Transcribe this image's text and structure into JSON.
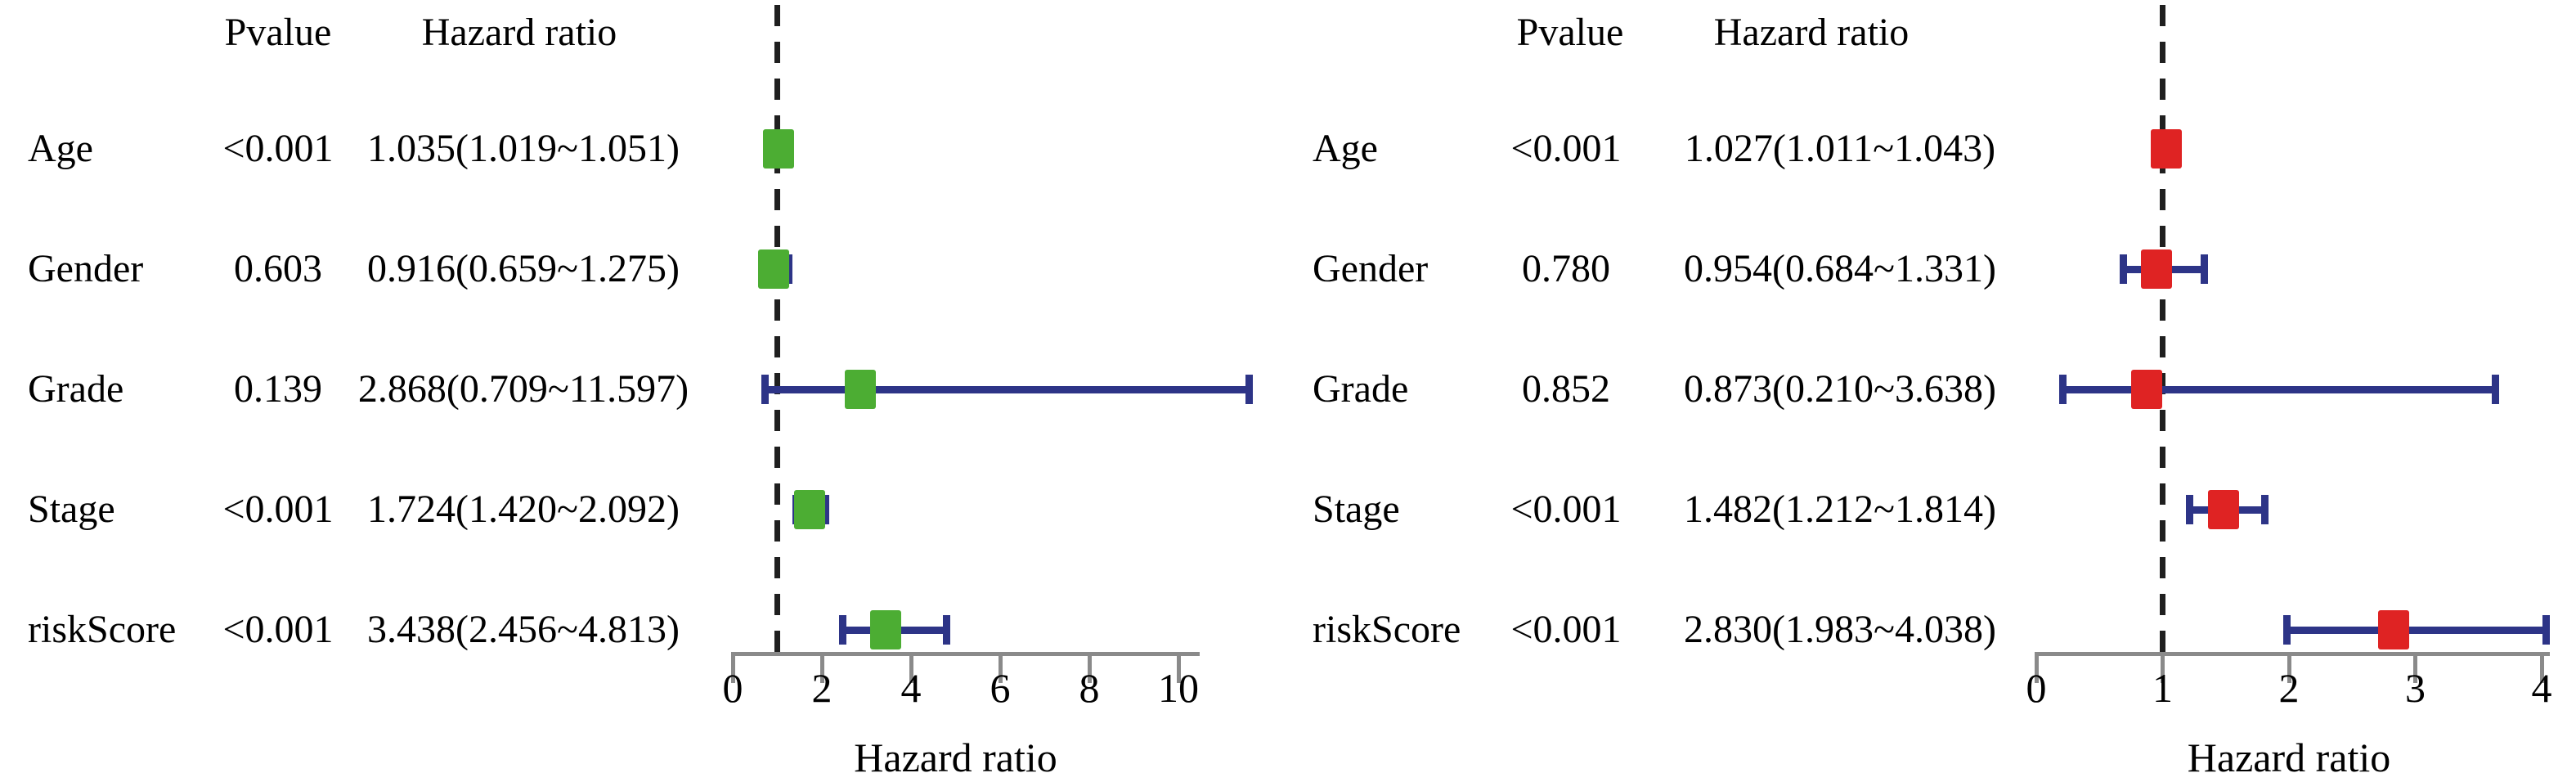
{
  "colors": {
    "ci_bar": "#2d3487",
    "axis": "#8a8a8a",
    "reference_line": "#1f1f1f",
    "text": "#000000",
    "background": "#ffffff",
    "marker_green": "#4cad33",
    "marker_red": "#df2323"
  },
  "chart_data": [
    {
      "type": "forest",
      "title": "",
      "col_headers": {
        "pvalue": "Pvalue",
        "hazard_ratio": "Hazard ratio"
      },
      "xlabel": "Hazard ratio",
      "marker_color": "#4cad33",
      "reference_line_x": 1,
      "axis": {
        "min": 0,
        "max": 10,
        "ticks": [
          0,
          2,
          4,
          6,
          8,
          10
        ]
      },
      "rows": [
        {
          "label": "Age",
          "pvalue": "<0.001",
          "hr_text": "1.035(1.019~1.051)",
          "hr": 1.035,
          "lo": 1.019,
          "hi": 1.051
        },
        {
          "label": "Gender",
          "pvalue": "0.603",
          "hr_text": "0.916(0.659~1.275)",
          "hr": 0.916,
          "lo": 0.659,
          "hi": 1.275
        },
        {
          "label": "Grade",
          "pvalue": "0.139",
          "hr_text": "2.868(0.709~11.597)",
          "hr": 2.868,
          "lo": 0.709,
          "hi": 11.597
        },
        {
          "label": "Stage",
          "pvalue": "<0.001",
          "hr_text": "1.724(1.420~2.092)",
          "hr": 1.724,
          "lo": 1.42,
          "hi": 2.092
        },
        {
          "label": "riskScore",
          "pvalue": "<0.001",
          "hr_text": "3.438(2.456~4.813)",
          "hr": 3.438,
          "lo": 2.456,
          "hi": 4.813
        }
      ]
    },
    {
      "type": "forest",
      "title": "",
      "col_headers": {
        "pvalue": "Pvalue",
        "hazard_ratio": "Hazard ratio"
      },
      "xlabel": "Hazard ratio",
      "marker_color": "#df2323",
      "reference_line_x": 1,
      "axis": {
        "min": 0,
        "max": 4,
        "ticks": [
          0,
          1,
          2,
          3,
          4
        ]
      },
      "rows": [
        {
          "label": "Age",
          "pvalue": "<0.001",
          "hr_text": "1.027(1.011~1.043)",
          "hr": 1.027,
          "lo": 1.011,
          "hi": 1.043
        },
        {
          "label": "Gender",
          "pvalue": "0.780",
          "hr_text": "0.954(0.684~1.331)",
          "hr": 0.954,
          "lo": 0.684,
          "hi": 1.331
        },
        {
          "label": "Grade",
          "pvalue": "0.852",
          "hr_text": "0.873(0.210~3.638)",
          "hr": 0.873,
          "lo": 0.21,
          "hi": 3.638
        },
        {
          "label": "Stage",
          "pvalue": "<0.001",
          "hr_text": "1.482(1.212~1.814)",
          "hr": 1.482,
          "lo": 1.212,
          "hi": 1.814
        },
        {
          "label": "riskScore",
          "pvalue": "<0.001",
          "hr_text": "2.830(1.983~4.038)",
          "hr": 2.83,
          "lo": 1.983,
          "hi": 4.038
        }
      ]
    }
  ]
}
